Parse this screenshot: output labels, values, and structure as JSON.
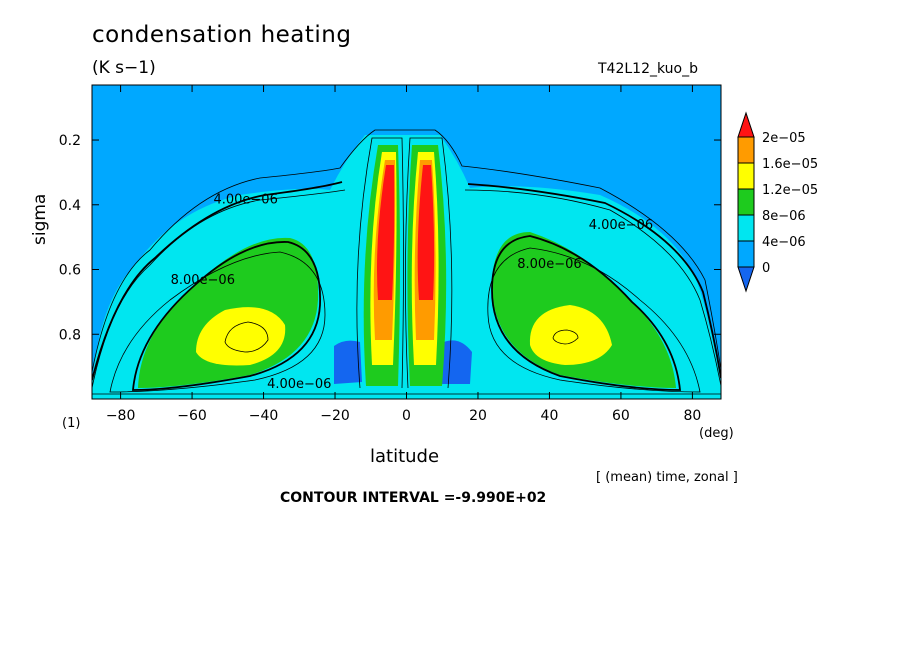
{
  "chart_data": {
    "type": "contour",
    "title": "condensation heating",
    "units": "(K s−1)",
    "run_id": "T42L12_kuo_b",
    "xlabel": "latitude",
    "x_unit": "(deg)",
    "ylabel": "sigma",
    "frame_label": "(1)",
    "meta": "[ (mean) time, zonal ]",
    "contour_interval": "CONTOUR INTERVAL =-9.990E+02",
    "xlim": [
      -88,
      88
    ],
    "ylim": [
      0.03,
      1.0
    ],
    "y_inverted": true,
    "x_ticks": [
      -80,
      -60,
      -40,
      -20,
      0,
      20,
      40,
      60,
      80
    ],
    "x_tick_labels": [
      "−80",
      "−60",
      "−40",
      "−20",
      "0",
      "20",
      "40",
      "60",
      "80"
    ],
    "y_ticks": [
      0.2,
      0.4,
      0.6,
      0.8
    ],
    "y_tick_labels": [
      "0.2",
      "0.4",
      "0.6",
      "0.8"
    ],
    "levels": [
      0,
      4e-06,
      8e-06,
      1.2e-05,
      1.6e-05,
      2e-05
    ],
    "colorbar_labels": [
      "2e−05",
      "1.6e−05",
      "1.2e−05",
      "8e−06",
      "4e−06",
      "0"
    ],
    "colors": {
      "below_0": "#1466f0",
      "0_to_4e-6": "#00a8ff",
      "4e-6_to_8e-6": "#00e6f0",
      "8e-6_to_1.2e-5": "#1ecb1e",
      "1.2e-5_to_1.6e-5": "#ffff00",
      "1.6e-5_to_2e-5": "#ff9b00",
      "above_2e-5": "#ff1414"
    },
    "contour_labels": [
      {
        "text": "4.00e−06",
        "lat": -45,
        "sigma": 0.38
      },
      {
        "text": "8.00e−06",
        "lat": -57,
        "sigma": 0.63
      },
      {
        "text": "4.00e−06",
        "lat": 60,
        "sigma": 0.46
      },
      {
        "text": "8.00e−06",
        "lat": 40,
        "sigma": 0.58
      },
      {
        "text": "4.00e−06",
        "lat": -30,
        "sigma": 0.95
      }
    ],
    "features": [
      {
        "name": "tropical-maximum-south",
        "lat": -6,
        "sigma": 0.45,
        "max_class": ">2e-05"
      },
      {
        "name": "tropical-maximum-north",
        "lat": 6,
        "sigma": 0.45,
        "max_class": ">2e-05"
      },
      {
        "name": "midlatitude-maximum-south",
        "lat": -45,
        "sigma": 0.8,
        "max_class": "1.2e-05 to 1.6e-05"
      },
      {
        "name": "midlatitude-maximum-north",
        "lat": 45,
        "sigma": 0.8,
        "max_class": "1.2e-05 to 1.6e-05"
      }
    ]
  }
}
